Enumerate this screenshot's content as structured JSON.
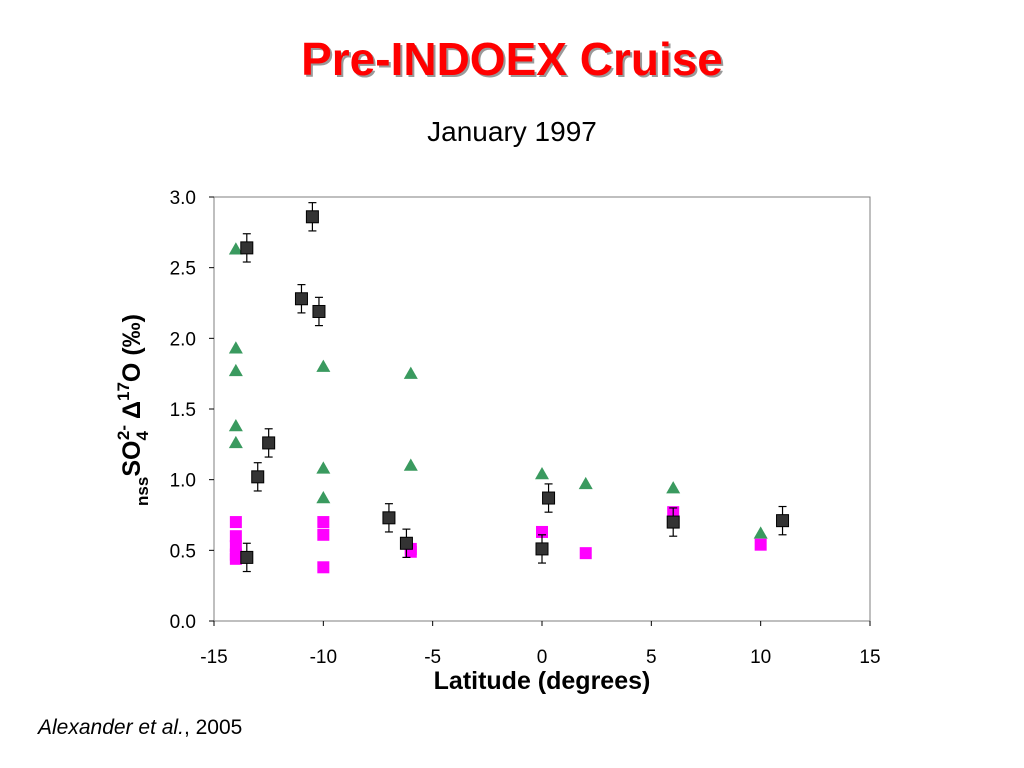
{
  "title": "Pre-INDOEX Cruise",
  "subtitle": "January 1997",
  "citation": {
    "author": "Alexander et al.",
    "rest": ", 2005"
  },
  "colors": {
    "title": "#ff0000",
    "series_square": "#333333",
    "series_triangle": "#3a9a5f",
    "series_magenta": "#ff00ff"
  },
  "chart_data": {
    "type": "scatter",
    "xlabel": "Latitude (degrees)",
    "ylabel": {
      "sub_before": "nss",
      "main": "SO",
      "sub_4": "4",
      "sup_charge": "2-",
      "delta": "Δ",
      "sup_17": "17",
      "rest": "O (‰)"
    },
    "xlim": [
      -15,
      15
    ],
    "ylim": [
      0,
      3
    ],
    "xticks": [
      "-15",
      "-10",
      "-5",
      "0",
      "5",
      "10",
      "15"
    ],
    "yticks": [
      "0.0",
      "0.5",
      "1.0",
      "1.5",
      "2.0",
      "2.5",
      "3.0"
    ],
    "grid": false,
    "legend": "none",
    "series": [
      {
        "marker": "square",
        "error_bars": true,
        "points": [
          {
            "x": -13.5,
            "y": 2.64,
            "err": 0.1
          },
          {
            "x": -10.5,
            "y": 2.86,
            "err": 0.1
          },
          {
            "x": -11.0,
            "y": 2.28,
            "err": 0.1
          },
          {
            "x": -10.2,
            "y": 2.19,
            "err": 0.1
          },
          {
            "x": -12.5,
            "y": 1.26,
            "err": 0.1
          },
          {
            "x": -13.0,
            "y": 1.02,
            "err": 0.1
          },
          {
            "x": -13.5,
            "y": 0.45,
            "err": 0.1
          },
          {
            "x": -7.0,
            "y": 0.73,
            "err": 0.1
          },
          {
            "x": -6.2,
            "y": 0.55,
            "err": 0.1
          },
          {
            "x": 0.0,
            "y": 0.51,
            "err": 0.1
          },
          {
            "x": 0.3,
            "y": 0.87,
            "err": 0.1
          },
          {
            "x": 6.0,
            "y": 0.7,
            "err": 0.1
          },
          {
            "x": 11.0,
            "y": 0.71,
            "err": 0.1
          }
        ]
      },
      {
        "marker": "triangle",
        "points": [
          {
            "x": -14.0,
            "y": 2.63
          },
          {
            "x": -14.0,
            "y": 1.93
          },
          {
            "x": -14.0,
            "y": 1.77
          },
          {
            "x": -14.0,
            "y": 1.38
          },
          {
            "x": -14.0,
            "y": 1.26
          },
          {
            "x": -10.0,
            "y": 1.8
          },
          {
            "x": -10.0,
            "y": 1.08
          },
          {
            "x": -10.0,
            "y": 0.87
          },
          {
            "x": -6.0,
            "y": 1.75
          },
          {
            "x": -6.0,
            "y": 1.1
          },
          {
            "x": 0.0,
            "y": 1.04
          },
          {
            "x": 2.0,
            "y": 0.97
          },
          {
            "x": 6.0,
            "y": 0.94
          },
          {
            "x": 10.0,
            "y": 0.62
          }
        ]
      },
      {
        "marker": "square-filled",
        "points": [
          {
            "x": -14.0,
            "y": 0.7
          },
          {
            "x": -14.0,
            "y": 0.6
          },
          {
            "x": -14.0,
            "y": 0.53
          },
          {
            "x": -14.0,
            "y": 0.47
          },
          {
            "x": -14.0,
            "y": 0.44
          },
          {
            "x": -10.0,
            "y": 0.7
          },
          {
            "x": -10.0,
            "y": 0.61
          },
          {
            "x": -10.0,
            "y": 0.38
          },
          {
            "x": -6.0,
            "y": 0.51
          },
          {
            "x": -6.0,
            "y": 0.49
          },
          {
            "x": 0.0,
            "y": 0.63
          },
          {
            "x": 2.0,
            "y": 0.48
          },
          {
            "x": 6.0,
            "y": 0.77
          },
          {
            "x": 10.0,
            "y": 0.54
          }
        ]
      }
    ]
  }
}
